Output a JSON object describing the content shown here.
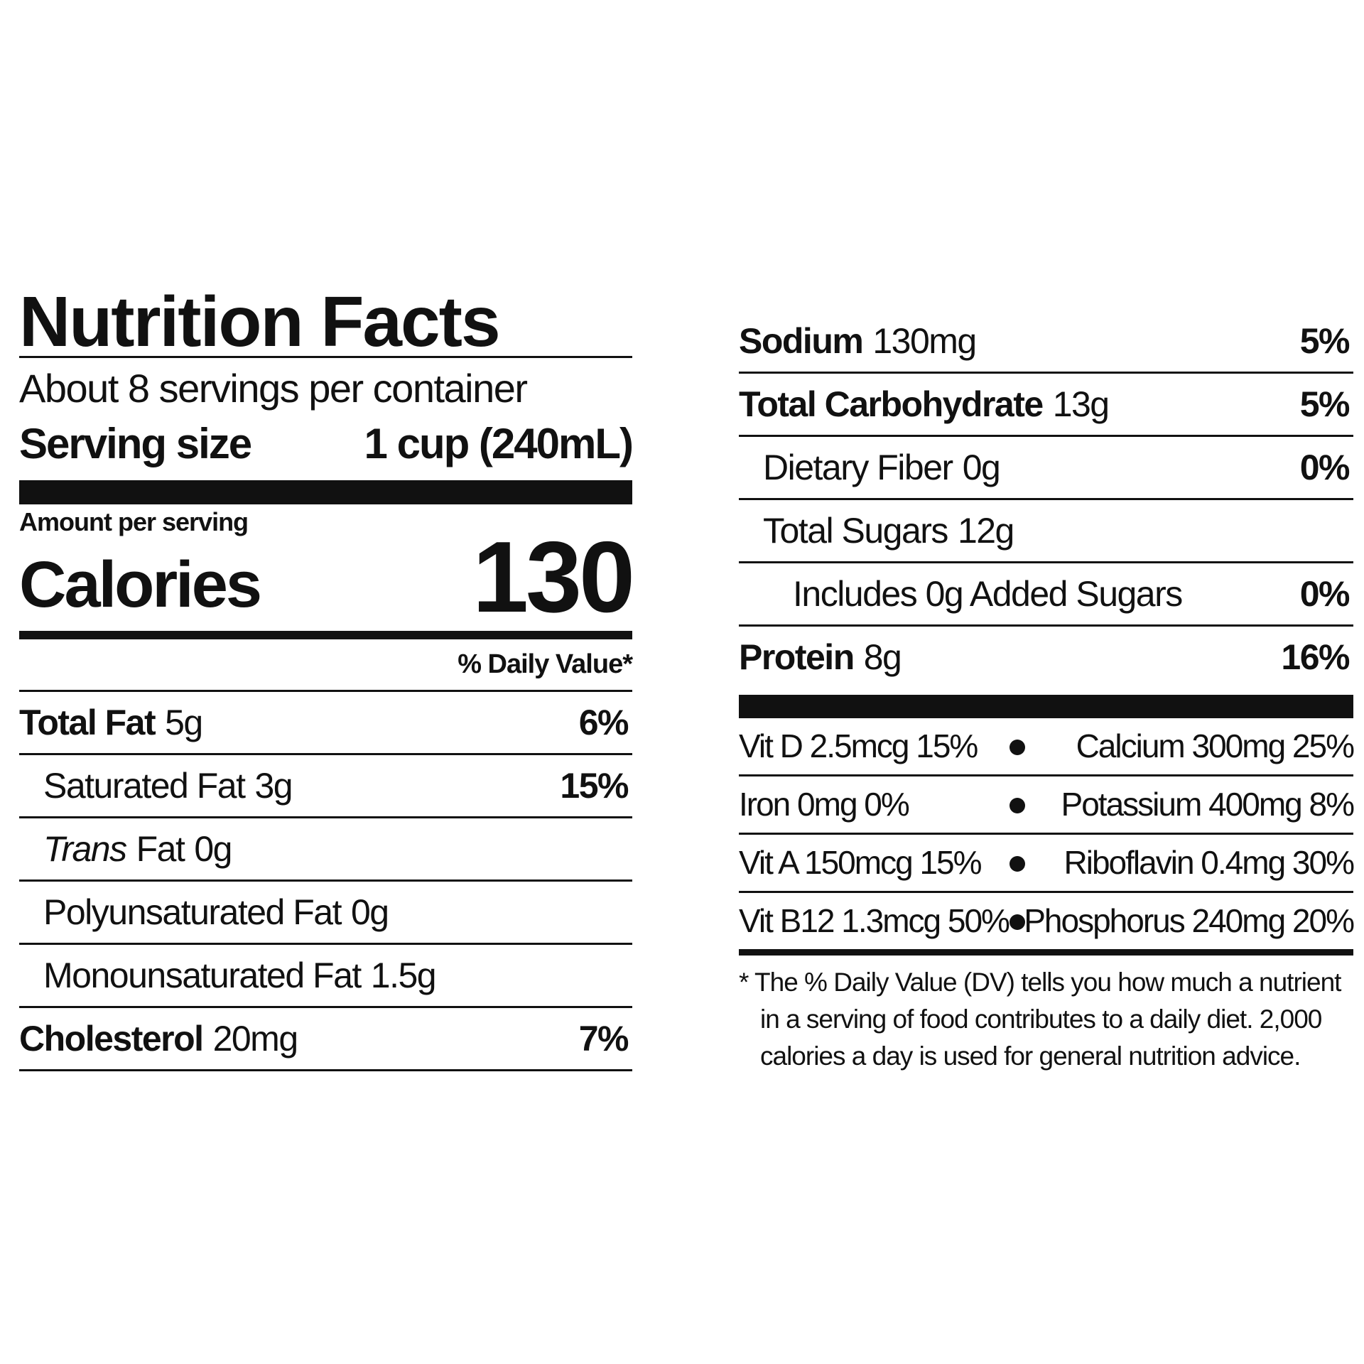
{
  "title": "Nutrition Facts",
  "servings_per_container": "About 8 servings per container",
  "serving_size": {
    "label": "Serving size",
    "value": "1 cup (240mL)"
  },
  "amount_per_serving": "Amount per serving",
  "calories": {
    "label": "Calories",
    "value": "130"
  },
  "daily_value_header": "% Daily Value*",
  "fats": [
    {
      "name": "Total Fat",
      "amount": "5g",
      "daily_value": "6%"
    },
    {
      "name": "Saturated Fat",
      "amount": "3g",
      "daily_value": "15%"
    },
    {
      "name_italic": "Trans",
      "name": "Fat",
      "amount": "0g"
    },
    {
      "name": "Polyunsaturated Fat",
      "amount": "0g"
    },
    {
      "name": "Monounsaturated Fat",
      "amount": "1.5g"
    },
    {
      "name": "Cholesterol",
      "amount": "20mg",
      "daily_value": "7%"
    }
  ],
  "nutrients": [
    {
      "name": "Sodium",
      "amount": "130mg",
      "daily_value": "5%"
    },
    {
      "name": "Total Carbohydrate",
      "amount": "13g",
      "daily_value": "5%"
    },
    {
      "name": "Dietary Fiber",
      "amount": "0g",
      "daily_value": "0%"
    },
    {
      "name": "Total Sugars",
      "amount": "12g"
    },
    {
      "name": "Includes 0g Added Sugars",
      "daily_value": "0%"
    },
    {
      "name": "Protein",
      "amount": "8g",
      "daily_value": "16%"
    }
  ],
  "vitamins_minerals": [
    [
      "Vit D 2.5mcg 15%",
      "Calcium 300mg 25%"
    ],
    [
      "Iron 0mg 0%",
      "Potassium 400mg 8%"
    ],
    [
      "Vit A 150mcg 15%",
      "Riboflavin 0.4mg 30%"
    ],
    [
      "Vit B12 1.3mcg 50%",
      "Phosphorus 240mg 20%"
    ]
  ],
  "footnote": "* The % Daily Value (DV) tells you how much a nutrient in a serving of food contributes to a daily diet. 2,000 calories a day is used for general nutrition advice."
}
